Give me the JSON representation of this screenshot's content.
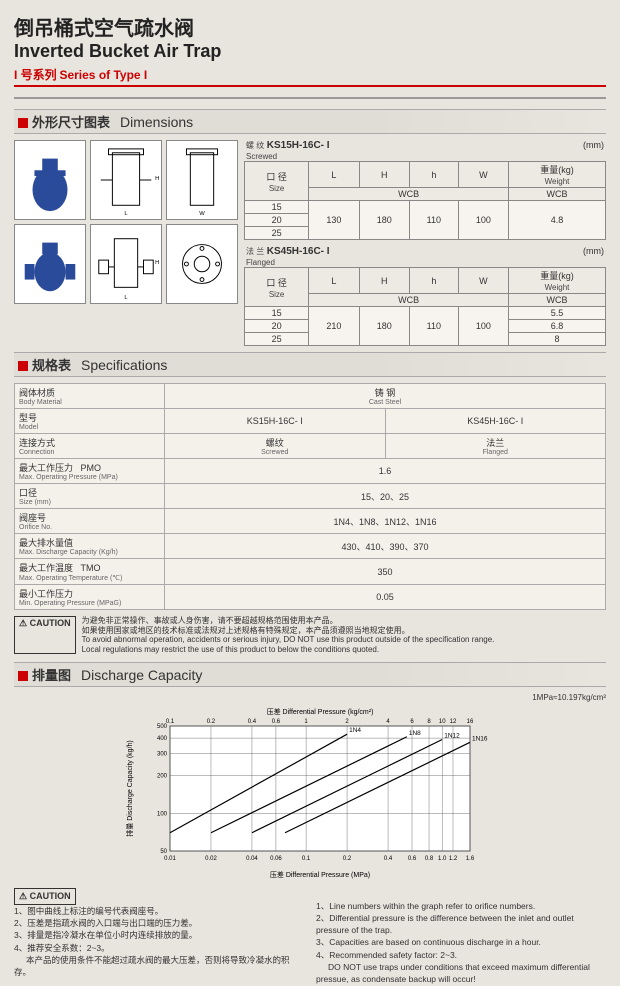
{
  "title": {
    "cn": "倒吊桶式空气疏水阀",
    "en": "Inverted Bucket Air Trap"
  },
  "subtitle": {
    "cn": "I 号系列",
    "en": "Series of Type I"
  },
  "sections": {
    "dimensions": {
      "cn": "外形尺寸图表",
      "en": "Dimensions"
    },
    "specifications": {
      "cn": "规格表",
      "en": "Specifications"
    },
    "discharge": {
      "cn": "排量图",
      "en": "Discharge Capacity"
    }
  },
  "dimTables": [
    {
      "conn_cn": "螺 纹",
      "conn_en": "Screwed",
      "model": "KS15H-16C- I",
      "unit": "(mm)",
      "headers": {
        "size_cn": "口 径",
        "size_en": "Size",
        "l": "L",
        "h_u": "H",
        "h_l": "h",
        "w": "W",
        "wt_cn": "重量(kg)",
        "wt_en": "Weight",
        "wcb": "WCB"
      },
      "sizes": [
        "15",
        "20",
        "25"
      ],
      "vals": {
        "l": "130",
        "h_u": "180",
        "h_l": "110",
        "w": "100",
        "wt": "4.8"
      }
    },
    {
      "conn_cn": "法 兰",
      "conn_en": "Flanged",
      "model": "KS45H-16C- I",
      "unit": "(mm)",
      "headers": {
        "size_cn": "口 径",
        "size_en": "Size",
        "l": "L",
        "h_u": "H",
        "h_l": "h",
        "w": "W",
        "wt_cn": "重量(kg)",
        "wt_en": "Weight",
        "wcb": "WCB"
      },
      "sizes": [
        "15",
        "20",
        "25"
      ],
      "vals": {
        "l": "210",
        "h_u": "180",
        "h_l": "110",
        "w": "100"
      },
      "wts": [
        "5.5",
        "6.8",
        "8"
      ]
    }
  ],
  "spec": {
    "body_cn": "阀体材质",
    "body_en": "Body Material",
    "body_val_cn": "铸  钢",
    "body_val_en": "Cast Steel",
    "model_cn": "型号",
    "model_en": "Model",
    "m1": "KS15H-16C- I",
    "m2": "KS45H-16C- I",
    "conn_cn": "连接方式",
    "conn_en": "Connection",
    "c1_cn": "螺纹",
    "c1_en": "Screwed",
    "c2_cn": "法兰",
    "c2_en": "Flanged",
    "pmo_cn": "最大工作压力",
    "pmo_en": "Max. Operating Pressure",
    "pmo_u": "PMO",
    "pmo_unit": "(MPa)",
    "pmo_val": "1.6",
    "size_cn": "口径",
    "size_en": "Size",
    "size_unit": "(mm)",
    "size_val": "15、20、25",
    "orf_cn": "阀座号",
    "orf_en": "Orifice No.",
    "orf_val": "1N4、1N8、1N12、1N16",
    "cap_cn": "最大排水量值",
    "cap_en": "Max. Discharge Capacity",
    "cap_unit": "(Kg/h)",
    "cap_val": "430、410、390、370",
    "tmo_cn": "最大工作温度",
    "tmo_en": "Max. Operating Temperature",
    "tmo_u": "TMO",
    "tmo_unit": "(℃)",
    "tmo_val": "350",
    "min_cn": "最小工作压力",
    "min_en": "Min. Operating Pressure",
    "min_unit": "(MPaG)",
    "min_val": "0.05"
  },
  "caution_label": "CAUTION",
  "caution1": {
    "cn1": "为避免非正常操作、事故或人身伤害，请不要超越规格范围使用本产品。",
    "cn2": "如果使用国家或地区的技术标准或法规对上述规格有特殊规定，本产品须遵照当地规定使用。",
    "en1": "To avoid abnormal operation, accidents or serious injury, DO NOT use this product outside of the specification range.",
    "en2": "Local regulations may restrict the use of this product to below the conditions quoted."
  },
  "chart": {
    "conv": "1MPa≈10.197kg/cm²",
    "xlabel_top_cn": "压差",
    "xlabel_top_en": "Differential Pressure (kg/cm²)",
    "xlabel_bot_cn": "压差",
    "xlabel_bot_en": "Differential Pressure (MPa)",
    "ylabel_cn": "排量",
    "ylabel_en": "Discharge Capacity (kg/h)",
    "xt_top": [
      "0.1",
      "0.2",
      "0.4",
      "0.6",
      "1",
      "2",
      "4",
      "6",
      "8",
      "10",
      "12",
      "16"
    ],
    "xt_bot": [
      "0.01",
      "0.02",
      "0.04",
      "0.06",
      "0.1",
      "0.2",
      "0.4",
      "0.6",
      "0.8",
      "1.0",
      "1.2",
      "1.6"
    ],
    "yt": [
      "50",
      "100",
      "200",
      "300",
      "400",
      "500"
    ],
    "series": [
      "1N4",
      "1N8",
      "1N12",
      "1N16"
    ],
    "bg": "#ffffff",
    "grid": "#555",
    "line": "#000"
  },
  "notes": {
    "cn": [
      "1、图中曲线上标注的编号代表阀座号。",
      "2、压差是指疏水阀的入口端与出口端的压力差。",
      "3、排量是指冷凝水在单位小时内连续排放的量。",
      "4、推荐安全系数：2~3。",
      "本产品的使用条件不能超过疏水阀的最大压差，否则将导致冷凝水的积存。"
    ],
    "en": [
      "1、Line numbers within the graph refer to orifice numbers.",
      "2、Differential pressure is the difference between the inlet and outlet pressure of the trap.",
      "3、Capacities are based on continuous discharge in a hour.",
      "4、Recommended safety factor: 2~3.",
      "DO NOT use traps under conditions that exceed maximum differential pressue, as condensate backup will occur!"
    ]
  }
}
